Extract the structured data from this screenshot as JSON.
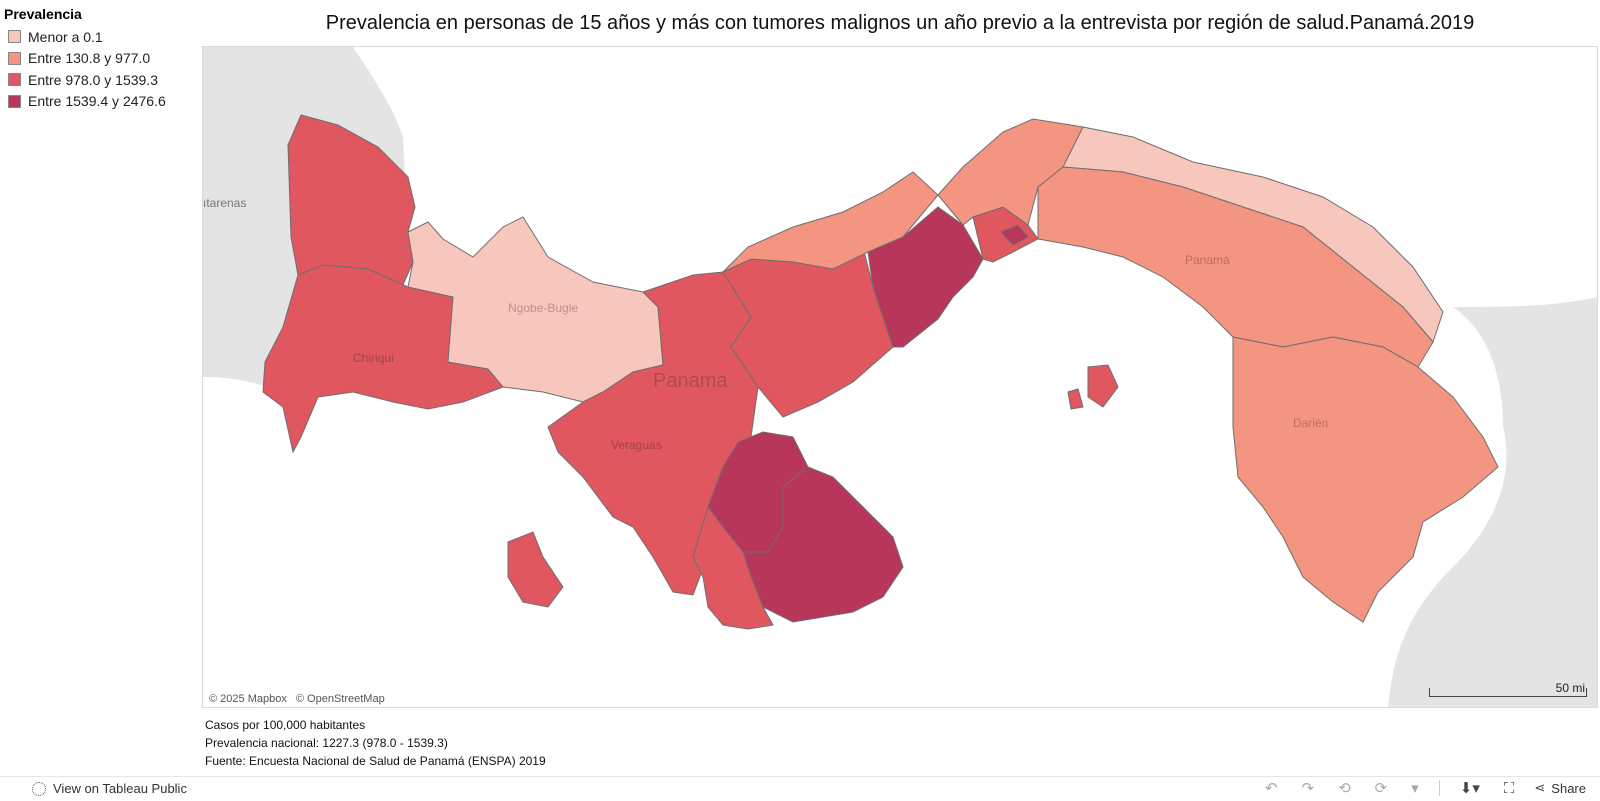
{
  "title": "Prevalencia en personas de 15 años y más con tumores malignos un año previo a la entrevista por región de salud.Panamá.2019",
  "legend": {
    "title": "Prevalencia",
    "items": [
      {
        "label": "Menor a 0.1",
        "color": "#f7c6bc"
      },
      {
        "label": "Entre 130.8 y 977.0",
        "color": "#f39581"
      },
      {
        "label": "Entre 978.0 y 1539.3",
        "color": "#e05760"
      },
      {
        "label": "Entre 1539.4 y 2476.6",
        "color": "#b8365a"
      }
    ]
  },
  "map": {
    "labels": {
      "country": "Panama",
      "costa_rica_city": "ıtarenas",
      "chiriqui": "Chiriquí",
      "ngobe": "Ngobe-Bugle",
      "veraguas": "Veraguas",
      "panama_region": "Panamá",
      "darien": "Darién"
    },
    "attribution": [
      "© 2025 Mapbox",
      "© OpenStreetMap"
    ],
    "scale_label": "50 mi",
    "colors": {
      "land": "#e4e4e4",
      "water": "#ffffff",
      "border": "#6e6e6e"
    }
  },
  "footer": {
    "line1": "Casos por 100,000 habitantes",
    "line2": "Prevalencia nacional: 1227.3 (978.0 - 1539.3)",
    "line3": "Fuente: Encuesta Nacional de Salud de Panamá (ENSPA) 2019"
  },
  "toolbar": {
    "view_label": "View on Tableau Public",
    "share_label": "Share"
  }
}
